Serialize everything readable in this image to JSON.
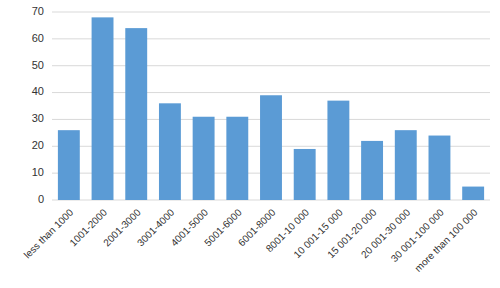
{
  "chart_data": {
    "type": "bar",
    "categories": [
      "less than 1000",
      "1001-2000",
      "2001-3000",
      "3001-4000",
      "4001-5000",
      "5001-6000",
      "6001-8000",
      "8001-10 000",
      "10 001-15 000",
      "15 001-20 000",
      "20 001-30 000",
      "30 001-100 000",
      "more than 100 000"
    ],
    "values": [
      26,
      68,
      64,
      36,
      31,
      31,
      39,
      19,
      37,
      22,
      26,
      24,
      5
    ],
    "color": "#5B9BD5",
    "ylim": [
      0,
      70
    ],
    "yticks": [
      0,
      10,
      20,
      30,
      40,
      50,
      60,
      70
    ],
    "grid": true
  }
}
